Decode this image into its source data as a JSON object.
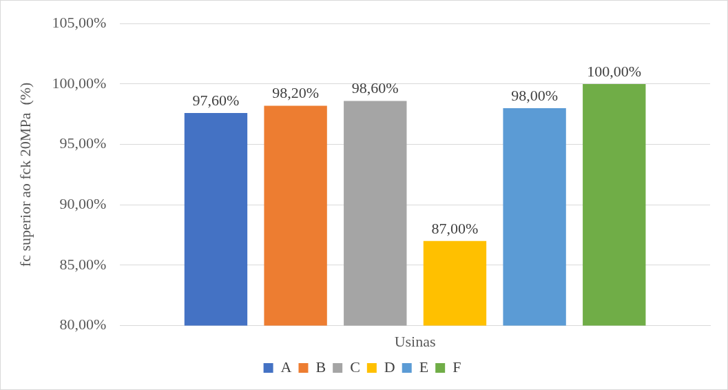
{
  "chart_data": {
    "type": "bar",
    "ylabel": "fc superior ao fck 20MPa  (%)",
    "categories": [
      "Usinas"
    ],
    "series": [
      {
        "name": "A",
        "color": "#4472c4",
        "values": [
          97.6
        ],
        "value_labels": [
          "97,60%"
        ]
      },
      {
        "name": "B",
        "color": "#ed7d31",
        "values": [
          98.2
        ],
        "value_labels": [
          "98,20%"
        ]
      },
      {
        "name": "C",
        "color": "#a5a5a5",
        "values": [
          98.6
        ],
        "value_labels": [
          "98,60%"
        ]
      },
      {
        "name": "D",
        "color": "#ffc000",
        "values": [
          87
        ],
        "value_labels": [
          "87,00%"
        ]
      },
      {
        "name": "E",
        "color": "#5b9bd5",
        "values": [
          98
        ],
        "value_labels": [
          "98,00%"
        ]
      },
      {
        "name": "F",
        "color": "#70ad47",
        "values": [
          100
        ],
        "value_labels": [
          "100,00%"
        ]
      }
    ],
    "ylim": [
      80,
      105
    ],
    "yticks": [
      {
        "value": 80,
        "label": "80,00%"
      },
      {
        "value": 85,
        "label": "85,00%"
      },
      {
        "value": 90,
        "label": "90,00%"
      },
      {
        "value": 95,
        "label": "95,00%"
      },
      {
        "value": 100,
        "label": "100,00%"
      },
      {
        "value": 105,
        "label": "105,00%"
      }
    ],
    "grid": "y",
    "legend": "bottom"
  }
}
